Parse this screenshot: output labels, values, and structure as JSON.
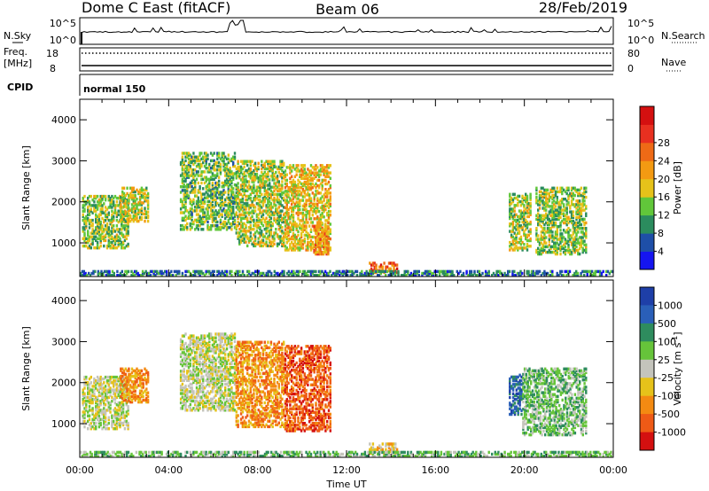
{
  "header": {
    "title_left": "Dome C East (fitACF)",
    "title_center": "Beam 06",
    "title_right": "28/Feb/2019"
  },
  "side_labels": {
    "nsky": "N.Sky",
    "nsearch": "N.Search",
    "freq": "Freq.",
    "mhz": "[MHz]",
    "nave": "Nave",
    "cpid": "CPID",
    "cpid_value": "normal 150"
  },
  "noise_axis": {
    "left_top": "10^5",
    "left_bottom": "10^0",
    "right_top": "10^5",
    "right_bottom": "10^0"
  },
  "freq_axis": {
    "left_top": "18",
    "left_bottom": "8",
    "right_top": "80",
    "right_bottom": "0"
  },
  "colors": {
    "power": [
      "#1515f0",
      "#1e4fa8",
      "#2b8c5e",
      "#61c73a",
      "#e6c21a",
      "#f39a12",
      "#ee6a16",
      "#e83020",
      "#d41010"
    ],
    "velocity": [
      "#1e3fa8",
      "#2a5fb8",
      "#2e8c5e",
      "#66c43a",
      "#c4c4bc",
      "#e6c21a",
      "#f38a12",
      "#ee5a16",
      "#d41010"
    ]
  },
  "chart_data": [
    {
      "type": "heatmap",
      "name": "power",
      "ylabel": "Slant Range [km]",
      "xlabel": "",
      "ylim": [
        180,
        4500
      ],
      "yticks": [
        "1000",
        "2000",
        "3000",
        "4000"
      ],
      "colorbar_label": "Power [dB]",
      "colorbar_ticks": [
        "4",
        "8",
        "12",
        "16",
        "20",
        "24",
        "28"
      ],
      "xlim_hours": [
        0,
        24
      ],
      "regions": [
        {
          "t0": 0.1,
          "t1": 2.2,
          "r0": 850,
          "r1": 2150,
          "v": 11
        },
        {
          "t0": 1.8,
          "t1": 3.1,
          "r0": 1500,
          "r1": 2350,
          "v": 13
        },
        {
          "t0": 4.5,
          "t1": 7.0,
          "r0": 1300,
          "r1": 3200,
          "v": 10
        },
        {
          "t0": 7.0,
          "t1": 9.2,
          "r0": 900,
          "r1": 3000,
          "v": 12
        },
        {
          "t0": 9.2,
          "t1": 11.3,
          "r0": 800,
          "r1": 2900,
          "v": 15
        },
        {
          "t0": 10.5,
          "t1": 11.2,
          "r0": 700,
          "r1": 1500,
          "v": 18
        },
        {
          "t0": 13.0,
          "t1": 14.3,
          "r0": 250,
          "r1": 520,
          "v": 22
        },
        {
          "t0": 19.3,
          "t1": 20.3,
          "r0": 800,
          "r1": 2200,
          "v": 12
        },
        {
          "t0": 20.5,
          "t1": 22.8,
          "r0": 700,
          "r1": 2350,
          "v": 11
        },
        {
          "t0": 0.0,
          "t1": 24.0,
          "r0": 180,
          "r1": 320,
          "v": 6
        }
      ]
    },
    {
      "type": "heatmap",
      "name": "velocity",
      "ylabel": "Slant Range [km]",
      "xlabel": "Time UT",
      "ylim": [
        180,
        4500
      ],
      "yticks": [
        "1000",
        "2000",
        "3000",
        "4000"
      ],
      "xticks": [
        "00:00",
        "04:00",
        "08:00",
        "12:00",
        "16:00",
        "20:00",
        "00:00"
      ],
      "colorbar_label": "Velocity [m s^-1]",
      "colorbar_ticks": [
        "1000",
        "500",
        "100",
        "25",
        "-25",
        "-100",
        "-500",
        "-1000"
      ],
      "xlim_hours": [
        0,
        24
      ],
      "regions": [
        {
          "t0": 0.1,
          "t1": 2.2,
          "r0": 850,
          "r1": 2150,
          "v": 4
        },
        {
          "t0": 1.8,
          "t1": 3.1,
          "r0": 1500,
          "r1": 2350,
          "v": 6
        },
        {
          "t0": 4.5,
          "t1": 7.0,
          "r0": 1300,
          "r1": 3200,
          "v": 4
        },
        {
          "t0": 7.0,
          "t1": 9.2,
          "r0": 900,
          "r1": 3000,
          "v": 6
        },
        {
          "t0": 9.2,
          "t1": 11.3,
          "r0": 800,
          "r1": 2900,
          "v": 7
        },
        {
          "t0": 13.0,
          "t1": 14.3,
          "r0": 250,
          "r1": 520,
          "v": 5
        },
        {
          "t0": 19.3,
          "t1": 19.9,
          "r0": 1200,
          "r1": 2200,
          "v": 1
        },
        {
          "t0": 19.9,
          "t1": 22.8,
          "r0": 700,
          "r1": 2350,
          "v": 3
        },
        {
          "t0": 0.0,
          "t1": 24.0,
          "r0": 180,
          "r1": 320,
          "v": 3
        }
      ]
    }
  ]
}
